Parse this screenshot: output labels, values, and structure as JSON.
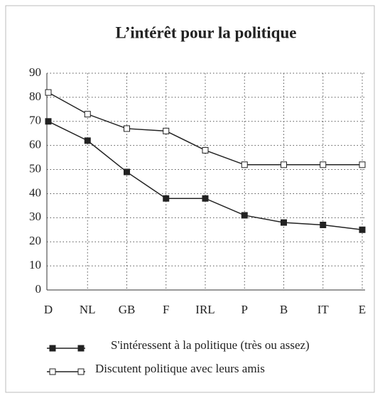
{
  "chart_data": {
    "type": "line",
    "title": "L’intérêt pour la politique",
    "categories": [
      "D",
      "NL",
      "GB",
      "F",
      "IRL",
      "P",
      "B",
      "IT",
      "E"
    ],
    "series": [
      {
        "name": "S'intéressent à la politique (très ou assez)",
        "color": "#222222",
        "marker_fill": "#222222",
        "values": [
          70,
          62,
          49,
          38,
          38,
          31,
          28,
          27,
          25
        ]
      },
      {
        "name": "Discutent politique avec leurs amis",
        "color": "#222222",
        "marker_fill": "#ffffff",
        "values": [
          82,
          73,
          67,
          66,
          58,
          52,
          52,
          52,
          52
        ]
      }
    ],
    "ylim": [
      0,
      90
    ],
    "yticks": [
      0,
      10,
      20,
      30,
      40,
      50,
      60,
      70,
      80,
      90
    ],
    "grid": true
  }
}
